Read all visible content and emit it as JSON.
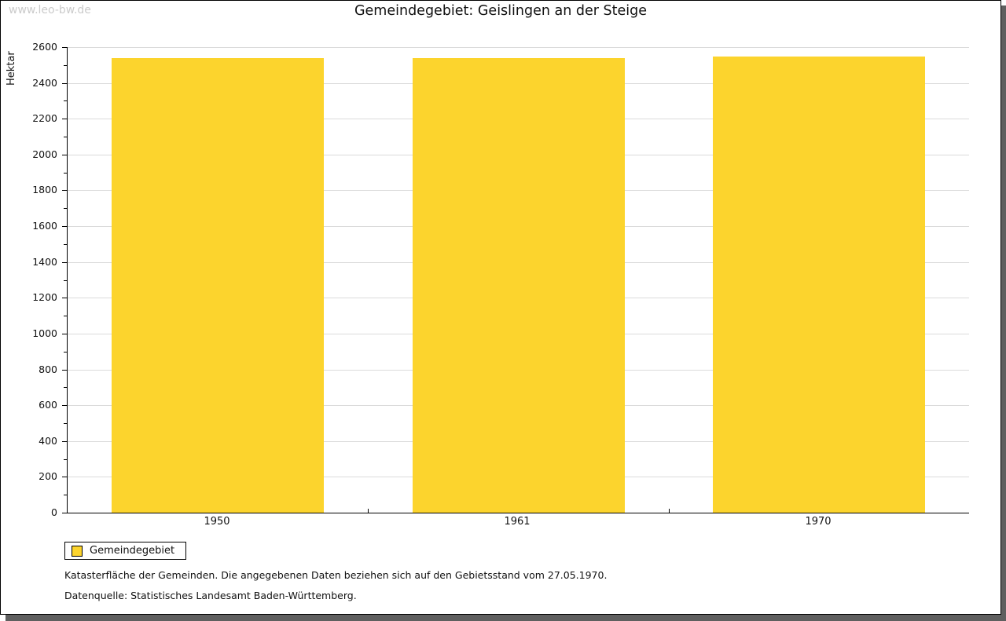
{
  "watermark": "www.leo-bw.de",
  "title": "Gemeindegebiet: Geislingen an der Steige",
  "legend": {
    "label": "Gemeindegebiet"
  },
  "footnotes": {
    "line1": "Katasterfläche der Gemeinden. Die angegebenen Daten beziehen sich auf den Gebietsstand vom 27.05.1970.",
    "line2": "Datenquelle: Statistisches Landesamt Baden-Württemberg."
  },
  "colors": {
    "bar": "#FCD42D",
    "grid": "#DBDBDB",
    "axis": "#000000",
    "watermark": "#CBCBCB",
    "shadow": "#5F5F5F"
  },
  "chart_data": {
    "type": "bar",
    "categories": [
      "1950",
      "1961",
      "1970"
    ],
    "series": [
      {
        "name": "Gemeindegebiet",
        "values": [
          2540,
          2540,
          2546
        ]
      }
    ],
    "title": "Gemeindegebiet: Geislingen an der Steige",
    "xlabel": "",
    "ylabel": "Hektar",
    "ylim": [
      0,
      2600
    ],
    "ytick_step": 200,
    "minor_tick_step": 100,
    "grid": true,
    "legend_position": "bottom-left"
  }
}
